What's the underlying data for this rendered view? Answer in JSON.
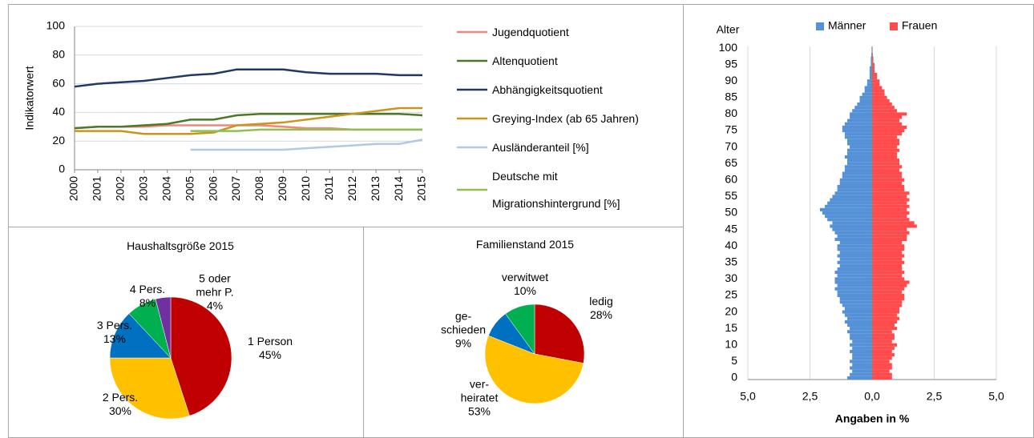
{
  "chart_data": [
    {
      "type": "line",
      "ylabel": "Indikatorwert",
      "x": [
        2000,
        2001,
        2002,
        2003,
        2004,
        2005,
        2006,
        2007,
        2008,
        2009,
        2010,
        2011,
        2012,
        2013,
        2014,
        2015
      ],
      "xlim": [
        2000,
        2015
      ],
      "xticks": [
        2000,
        2001,
        2002,
        2003,
        2004,
        2005,
        2006,
        2007,
        2008,
        2009,
        2010,
        2011,
        2012,
        2013,
        2014,
        2015
      ],
      "ylim": [
        0,
        100
      ],
      "yticks": [
        0,
        20,
        40,
        60,
        80,
        100
      ],
      "grid": true,
      "series": [
        {
          "name": "Jugendquotient",
          "color": "#f4867a",
          "values": [
            29,
            30,
            30,
            30,
            31,
            31,
            31,
            31,
            31,
            30,
            29,
            29,
            28,
            28,
            28,
            28
          ]
        },
        {
          "name": "Altenquotient",
          "color": "#4a7a28",
          "values": [
            29,
            30,
            30,
            31,
            32,
            35,
            35,
            38,
            39,
            39,
            39,
            39,
            39,
            39,
            39,
            38
          ]
        },
        {
          "name": "Abhängigkeitsquotient",
          "color": "#1f3864",
          "values": [
            58,
            60,
            61,
            62,
            64,
            66,
            67,
            70,
            70,
            70,
            68,
            67,
            67,
            67,
            66,
            66
          ]
        },
        {
          "name": "Greying-Index (ab 65 Jahren)",
          "color": "#c8961e",
          "values": [
            27,
            27,
            27,
            25,
            25,
            25,
            26,
            31,
            32,
            33,
            35,
            37,
            39,
            41,
            43,
            43
          ]
        },
        {
          "name": "Ausländeranteil [%]",
          "color": "#b4c7e7",
          "values": [
            null,
            null,
            null,
            null,
            null,
            14,
            14,
            14,
            14,
            14,
            15,
            16,
            17,
            18,
            18,
            21
          ]
        },
        {
          "name": "Deutsche mit\nMigrationshintergrund [%]",
          "color": "#8cc152",
          "values": [
            null,
            null,
            null,
            null,
            null,
            27,
            27,
            27,
            28,
            28,
            28,
            28,
            28,
            28,
            28,
            28
          ]
        }
      ]
    },
    {
      "type": "pie",
      "title": "Haushaltsgröße 2015",
      "categories": [
        "1 Person",
        "2 Pers.",
        "3 Pers.",
        "4 Pers.",
        "5 oder\nmehr P."
      ],
      "values": [
        45,
        30,
        13,
        8,
        4
      ],
      "value_labels": [
        "45%",
        "30%",
        "13%",
        "8%",
        "4%"
      ],
      "colors": [
        "#c00000",
        "#ffc000",
        "#0070c0",
        "#00b050",
        "#7030a0"
      ]
    },
    {
      "type": "pie",
      "title": "Familienstand 2015",
      "categories": [
        "ledig",
        "ver-\nheiratet",
        "ge-\nschieden",
        "verwitwet"
      ],
      "values": [
        28,
        53,
        9,
        10
      ],
      "value_labels": [
        "28%",
        "53%",
        "9%",
        "10%"
      ],
      "colors": [
        "#c00000",
        "#ffc000",
        "#0070c0",
        "#00b050"
      ]
    },
    {
      "type": "bar",
      "horizontal": true,
      "ylabel": "Alter",
      "xlabel": "Angaben in %",
      "categories": [
        0,
        null,
        null,
        null,
        null,
        5,
        null,
        null,
        null,
        null,
        10,
        null,
        null,
        null,
        null,
        15,
        null,
        null,
        null,
        null,
        20,
        null,
        null,
        null,
        null,
        25,
        null,
        null,
        null,
        null,
        30,
        null,
        null,
        null,
        null,
        35,
        null,
        null,
        null,
        null,
        40,
        null,
        null,
        null,
        null,
        45,
        null,
        null,
        null,
        null,
        50,
        null,
        null,
        null,
        null,
        55,
        null,
        null,
        null,
        null,
        60,
        null,
        null,
        null,
        null,
        65,
        null,
        null,
        null,
        null,
        70,
        null,
        null,
        null,
        null,
        75,
        null,
        null,
        null,
        null,
        80,
        null,
        null,
        null,
        null,
        85,
        null,
        null,
        null,
        null,
        90,
        null,
        null,
        null,
        null,
        95,
        null,
        null,
        null,
        null,
        100
      ],
      "xlim": [
        -5,
        5
      ],
      "xticks": [
        {
          "value": -5,
          "label": "5,0"
        },
        {
          "value": -2.5,
          "label": "2,5"
        },
        {
          "value": 0,
          "label": "0,0"
        },
        {
          "value": 2.5,
          "label": "2,5"
        },
        {
          "value": 5,
          "label": "5,0"
        }
      ],
      "grid": true,
      "legend": "top",
      "series": [
        {
          "name": "Männer",
          "color": "#5591d6",
          "values": [
            -1.0,
            -0.9,
            -0.8,
            -0.9,
            -0.8,
            -0.9,
            -0.8,
            -0.8,
            -0.9,
            -0.8,
            -0.9,
            -0.8,
            -0.9,
            -0.9,
            -1.0,
            -0.9,
            -1.0,
            -1.1,
            -1.0,
            -1.1,
            -1.2,
            -1.1,
            -1.2,
            -1.3,
            -1.3,
            -1.4,
            -1.4,
            -1.5,
            -1.4,
            -1.5,
            -1.5,
            -1.4,
            -1.5,
            -1.4,
            -1.3,
            -1.4,
            -1.3,
            -1.4,
            -1.3,
            -1.4,
            -1.4,
            -1.3,
            -1.5,
            -1.4,
            -1.5,
            -1.6,
            -1.7,
            -1.6,
            -1.8,
            -1.9,
            -2.0,
            -2.1,
            -1.9,
            -1.8,
            -1.7,
            -1.6,
            -1.5,
            -1.4,
            -1.4,
            -1.3,
            -1.3,
            -1.2,
            -1.2,
            -1.1,
            -1.1,
            -1.0,
            -1.0,
            -1.1,
            -1.0,
            -1.0,
            -0.9,
            -1.0,
            -1.0,
            -1.1,
            -1.1,
            -1.2,
            -1.2,
            -1.1,
            -1.0,
            -0.9,
            -0.9,
            -0.8,
            -0.7,
            -0.6,
            -0.5,
            -0.5,
            -0.4,
            -0.3,
            -0.3,
            -0.2,
            -0.2,
            -0.1,
            -0.1,
            -0.1,
            -0.1,
            -0.05,
            -0.05,
            -0.05,
            -0.03,
            -0.02,
            -0.02
          ]
        },
        {
          "name": "Frauen",
          "color": "#ff4b4b",
          "values": [
            0.8,
            0.8,
            0.7,
            0.8,
            0.8,
            0.7,
            0.8,
            0.9,
            0.8,
            0.9,
            1.0,
            0.8,
            0.9,
            0.9,
            0.8,
            1.0,
            0.9,
            1.0,
            1.1,
            1.0,
            1.1,
            1.1,
            1.2,
            1.2,
            1.3,
            1.3,
            1.2,
            1.3,
            1.4,
            1.5,
            1.3,
            1.2,
            1.3,
            1.2,
            1.2,
            1.3,
            1.2,
            1.3,
            1.2,
            1.3,
            1.3,
            1.2,
            1.4,
            1.4,
            1.5,
            1.4,
            1.8,
            1.7,
            1.5,
            1.4,
            1.5,
            1.4,
            1.5,
            1.4,
            1.5,
            1.4,
            1.5,
            1.3,
            1.3,
            1.2,
            1.3,
            1.2,
            1.2,
            1.1,
            1.2,
            1.1,
            1.1,
            1.0,
            1.0,
            1.1,
            1.0,
            1.1,
            1.1,
            1.0,
            1.2,
            1.3,
            1.4,
            1.2,
            1.1,
            1.2,
            1.4,
            1.0,
            0.9,
            0.8,
            0.7,
            0.6,
            0.5,
            0.5,
            0.4,
            0.3,
            0.3,
            0.2,
            0.2,
            0.1,
            0.1,
            0.1,
            0.05,
            0.05,
            0.03,
            0.02,
            0.02
          ]
        }
      ]
    }
  ]
}
